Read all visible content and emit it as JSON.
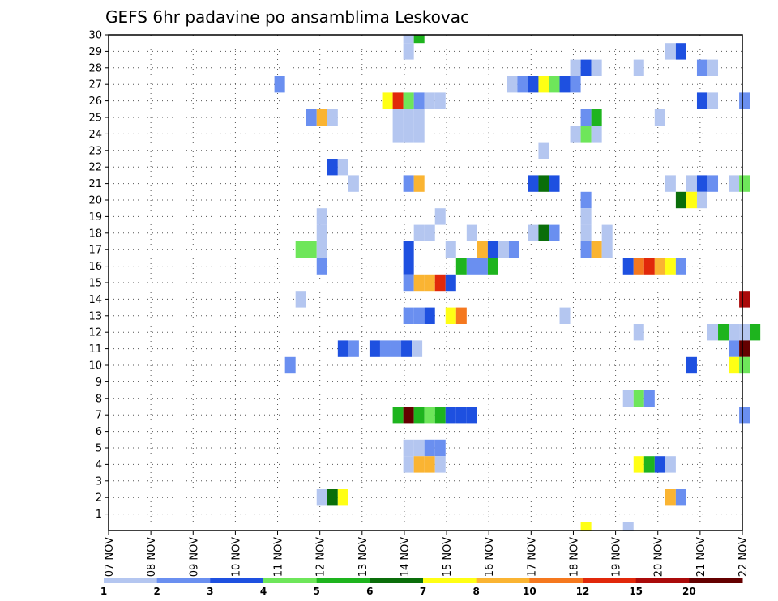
{
  "chart_data": {
    "type": "heatmap",
    "title": "GEFS 6hr padavine po ansamblima Leskovac",
    "xlabel": "",
    "ylabel": "",
    "x_range": [
      0,
      30
    ],
    "y_range": [
      0,
      30
    ],
    "x_ticks": [
      {
        "pos": 0,
        "label": "07 NOV"
      },
      {
        "pos": 2,
        "label": "08 NOV"
      },
      {
        "pos": 4,
        "label": "09 NOV"
      },
      {
        "pos": 6,
        "label": "10 NOV"
      },
      {
        "pos": 8,
        "label": "11 NOV"
      },
      {
        "pos": 10,
        "label": "12 NOV"
      },
      {
        "pos": 12,
        "label": "13 NOV"
      },
      {
        "pos": 14,
        "label": "14 NOV"
      },
      {
        "pos": 16,
        "label": "15 NOV"
      },
      {
        "pos": 18,
        "label": "16 NOV"
      },
      {
        "pos": 20,
        "label": "17 NOV"
      },
      {
        "pos": 22,
        "label": "18 NOV"
      },
      {
        "pos": 24,
        "label": "19 NOV"
      },
      {
        "pos": 26,
        "label": "20 NOV"
      },
      {
        "pos": 28,
        "label": "21 NOV"
      },
      {
        "pos": 30,
        "label": "22 NOV"
      }
    ],
    "y_ticks": [
      "1",
      "2",
      "3",
      "4",
      "5",
      "6",
      "7",
      "8",
      "9",
      "10",
      "11",
      "12",
      "13",
      "14",
      "15",
      "16",
      "17",
      "18",
      "19",
      "20",
      "21",
      "22",
      "23",
      "24",
      "25",
      "26",
      "27",
      "28",
      "29",
      "30"
    ],
    "grid": true,
    "legend": {
      "placement": "bottom",
      "colors": [
        "#b4c6f0",
        "#6a8ff0",
        "#1e50e0",
        "#6ee65a",
        "#1eb41e",
        "#0a6e0a",
        "#ffff14",
        "#fab432",
        "#f5781e",
        "#e1280a",
        "#aa0a0a",
        "#640000"
      ],
      "labels": [
        "1",
        "2",
        "3",
        "4",
        "5",
        "6",
        "7",
        "8",
        "10",
        "12",
        "15",
        "20"
      ]
    },
    "cells": [
      {
        "x": 14.2,
        "y": 30,
        "v": 1
      },
      {
        "x": 14.7,
        "y": 30,
        "v": 5
      },
      {
        "x": 14.2,
        "y": 29,
        "v": 1
      },
      {
        "x": 26.6,
        "y": 29,
        "v": 1
      },
      {
        "x": 27.1,
        "y": 29,
        "v": 3
      },
      {
        "x": 22.1,
        "y": 28,
        "v": 1
      },
      {
        "x": 22.6,
        "y": 28,
        "v": 3
      },
      {
        "x": 23.1,
        "y": 28,
        "v": 1
      },
      {
        "x": 25.1,
        "y": 28,
        "v": 1
      },
      {
        "x": 28.1,
        "y": 28,
        "v": 2
      },
      {
        "x": 28.6,
        "y": 28,
        "v": 1
      },
      {
        "x": 8.1,
        "y": 27,
        "v": 2
      },
      {
        "x": 19.1,
        "y": 27,
        "v": 1
      },
      {
        "x": 19.6,
        "y": 27,
        "v": 2
      },
      {
        "x": 20.1,
        "y": 27,
        "v": 3
      },
      {
        "x": 20.6,
        "y": 27,
        "v": 7
      },
      {
        "x": 21.1,
        "y": 27,
        "v": 4
      },
      {
        "x": 21.6,
        "y": 27,
        "v": 3
      },
      {
        "x": 22.1,
        "y": 27,
        "v": 2
      },
      {
        "x": 13.2,
        "y": 26,
        "v": 7
      },
      {
        "x": 13.7,
        "y": 26,
        "v": 12
      },
      {
        "x": 14.2,
        "y": 26,
        "v": 4
      },
      {
        "x": 14.7,
        "y": 26,
        "v": 2
      },
      {
        "x": 15.2,
        "y": 26,
        "v": 1
      },
      {
        "x": 15.7,
        "y": 26,
        "v": 1
      },
      {
        "x": 28.1,
        "y": 26,
        "v": 3
      },
      {
        "x": 28.6,
        "y": 26,
        "v": 1
      },
      {
        "x": 30.1,
        "y": 26,
        "v": 2
      },
      {
        "x": 9.6,
        "y": 25,
        "v": 2
      },
      {
        "x": 10.1,
        "y": 25,
        "v": 8
      },
      {
        "x": 10.6,
        "y": 25,
        "v": 1
      },
      {
        "x": 13.7,
        "y": 25,
        "v": 1
      },
      {
        "x": 14.2,
        "y": 25,
        "v": 1
      },
      {
        "x": 14.7,
        "y": 25,
        "v": 1
      },
      {
        "x": 22.6,
        "y": 25,
        "v": 2
      },
      {
        "x": 23.1,
        "y": 25,
        "v": 5
      },
      {
        "x": 26.1,
        "y": 25,
        "v": 1
      },
      {
        "x": 13.7,
        "y": 24,
        "v": 1
      },
      {
        "x": 14.2,
        "y": 24,
        "v": 1
      },
      {
        "x": 14.7,
        "y": 24,
        "v": 1
      },
      {
        "x": 22.1,
        "y": 24,
        "v": 1
      },
      {
        "x": 22.6,
        "y": 24,
        "v": 4
      },
      {
        "x": 23.1,
        "y": 24,
        "v": 1
      },
      {
        "x": 20.6,
        "y": 23,
        "v": 1
      },
      {
        "x": 10.6,
        "y": 22,
        "v": 3
      },
      {
        "x": 11.1,
        "y": 22,
        "v": 1
      },
      {
        "x": 11.6,
        "y": 21,
        "v": 1
      },
      {
        "x": 14.2,
        "y": 21,
        "v": 2
      },
      {
        "x": 14.7,
        "y": 21,
        "v": 8
      },
      {
        "x": 20.1,
        "y": 21,
        "v": 3
      },
      {
        "x": 20.6,
        "y": 21,
        "v": 6
      },
      {
        "x": 21.1,
        "y": 21,
        "v": 3
      },
      {
        "x": 26.6,
        "y": 21,
        "v": 1
      },
      {
        "x": 27.6,
        "y": 21,
        "v": 1
      },
      {
        "x": 28.1,
        "y": 21,
        "v": 3
      },
      {
        "x": 28.6,
        "y": 21,
        "v": 2
      },
      {
        "x": 29.6,
        "y": 21,
        "v": 1
      },
      {
        "x": 30.1,
        "y": 21,
        "v": 4
      },
      {
        "x": 22.6,
        "y": 20,
        "v": 2
      },
      {
        "x": 27.1,
        "y": 20,
        "v": 6
      },
      {
        "x": 27.6,
        "y": 20,
        "v": 7
      },
      {
        "x": 28.1,
        "y": 20,
        "v": 1
      },
      {
        "x": 15.7,
        "y": 19,
        "v": 1
      },
      {
        "x": 10.1,
        "y": 19,
        "v": 1
      },
      {
        "x": 22.6,
        "y": 19,
        "v": 1
      },
      {
        "x": 10.1,
        "y": 18,
        "v": 1
      },
      {
        "x": 14.7,
        "y": 18,
        "v": 1
      },
      {
        "x": 15.2,
        "y": 18,
        "v": 1
      },
      {
        "x": 17.2,
        "y": 18,
        "v": 1
      },
      {
        "x": 20.1,
        "y": 18,
        "v": 1
      },
      {
        "x": 20.6,
        "y": 18,
        "v": 6
      },
      {
        "x": 21.1,
        "y": 18,
        "v": 2
      },
      {
        "x": 22.6,
        "y": 18,
        "v": 1
      },
      {
        "x": 23.6,
        "y": 18,
        "v": 1
      },
      {
        "x": 9.1,
        "y": 17,
        "v": 4
      },
      {
        "x": 9.6,
        "y": 17,
        "v": 4
      },
      {
        "x": 10.1,
        "y": 17,
        "v": 1
      },
      {
        "x": 14.2,
        "y": 17,
        "v": 3
      },
      {
        "x": 16.2,
        "y": 17,
        "v": 1
      },
      {
        "x": 17.7,
        "y": 17,
        "v": 8
      },
      {
        "x": 18.2,
        "y": 17,
        "v": 3
      },
      {
        "x": 18.7,
        "y": 17,
        "v": 1
      },
      {
        "x": 19.2,
        "y": 17,
        "v": 2
      },
      {
        "x": 22.6,
        "y": 17,
        "v": 2
      },
      {
        "x": 23.1,
        "y": 17,
        "v": 8
      },
      {
        "x": 23.6,
        "y": 17,
        "v": 1
      },
      {
        "x": 10.1,
        "y": 16,
        "v": 2
      },
      {
        "x": 14.2,
        "y": 16,
        "v": 3
      },
      {
        "x": 16.7,
        "y": 16,
        "v": 5
      },
      {
        "x": 17.2,
        "y": 16,
        "v": 2
      },
      {
        "x": 17.7,
        "y": 16,
        "v": 2
      },
      {
        "x": 18.2,
        "y": 16,
        "v": 5
      },
      {
        "x": 24.6,
        "y": 16,
        "v": 3
      },
      {
        "x": 25.1,
        "y": 16,
        "v": 10
      },
      {
        "x": 25.6,
        "y": 16,
        "v": 12
      },
      {
        "x": 26.1,
        "y": 16,
        "v": 8
      },
      {
        "x": 26.6,
        "y": 16,
        "v": 7
      },
      {
        "x": 27.1,
        "y": 16,
        "v": 2
      },
      {
        "x": 14.2,
        "y": 15,
        "v": 2
      },
      {
        "x": 14.7,
        "y": 15,
        "v": 8
      },
      {
        "x": 15.2,
        "y": 15,
        "v": 8
      },
      {
        "x": 15.7,
        "y": 15,
        "v": 12
      },
      {
        "x": 16.2,
        "y": 15,
        "v": 3
      },
      {
        "x": 9.1,
        "y": 14,
        "v": 1
      },
      {
        "x": 30.1,
        "y": 14,
        "v": 15
      },
      {
        "x": 14.2,
        "y": 13,
        "v": 2
      },
      {
        "x": 14.7,
        "y": 13,
        "v": 2
      },
      {
        "x": 15.2,
        "y": 13,
        "v": 3
      },
      {
        "x": 16.2,
        "y": 13,
        "v": 7
      },
      {
        "x": 16.7,
        "y": 13,
        "v": 10
      },
      {
        "x": 21.6,
        "y": 13,
        "v": 1
      },
      {
        "x": 25.1,
        "y": 12,
        "v": 1
      },
      {
        "x": 28.6,
        "y": 12,
        "v": 1
      },
      {
        "x": 29.1,
        "y": 12,
        "v": 5
      },
      {
        "x": 29.6,
        "y": 12,
        "v": 1
      },
      {
        "x": 30.1,
        "y": 12,
        "v": 1
      },
      {
        "x": 30.6,
        "y": 12,
        "v": 5
      },
      {
        "x": 11.1,
        "y": 11,
        "v": 3
      },
      {
        "x": 11.6,
        "y": 11,
        "v": 2
      },
      {
        "x": 12.6,
        "y": 11,
        "v": 3
      },
      {
        "x": 13.1,
        "y": 11,
        "v": 2
      },
      {
        "x": 13.6,
        "y": 11,
        "v": 2
      },
      {
        "x": 14.1,
        "y": 11,
        "v": 3
      },
      {
        "x": 14.6,
        "y": 11,
        "v": 1
      },
      {
        "x": 29.6,
        "y": 11,
        "v": 2
      },
      {
        "x": 30.1,
        "y": 11,
        "v": 20
      },
      {
        "x": 8.6,
        "y": 10,
        "v": 2
      },
      {
        "x": 27.6,
        "y": 10,
        "v": 3
      },
      {
        "x": 29.6,
        "y": 10,
        "v": 7
      },
      {
        "x": 30.1,
        "y": 10,
        "v": 4
      },
      {
        "x": 24.6,
        "y": 8,
        "v": 1
      },
      {
        "x": 25.1,
        "y": 8,
        "v": 4
      },
      {
        "x": 25.6,
        "y": 8,
        "v": 2
      },
      {
        "x": 13.7,
        "y": 7,
        "v": 5
      },
      {
        "x": 14.2,
        "y": 7,
        "v": 20
      },
      {
        "x": 14.7,
        "y": 7,
        "v": 5
      },
      {
        "x": 15.2,
        "y": 7,
        "v": 4
      },
      {
        "x": 15.7,
        "y": 7,
        "v": 5
      },
      {
        "x": 16.2,
        "y": 7,
        "v": 3
      },
      {
        "x": 16.7,
        "y": 7,
        "v": 3
      },
      {
        "x": 17.2,
        "y": 7,
        "v": 3
      },
      {
        "x": 30.1,
        "y": 7,
        "v": 2
      },
      {
        "x": 14.2,
        "y": 5,
        "v": 1
      },
      {
        "x": 14.7,
        "y": 5,
        "v": 1
      },
      {
        "x": 15.2,
        "y": 5,
        "v": 2
      },
      {
        "x": 15.7,
        "y": 5,
        "v": 2
      },
      {
        "x": 14.2,
        "y": 4,
        "v": 1
      },
      {
        "x": 14.7,
        "y": 4,
        "v": 8
      },
      {
        "x": 15.2,
        "y": 4,
        "v": 8
      },
      {
        "x": 15.7,
        "y": 4,
        "v": 1
      },
      {
        "x": 25.1,
        "y": 4,
        "v": 7
      },
      {
        "x": 25.6,
        "y": 4,
        "v": 5
      },
      {
        "x": 26.1,
        "y": 4,
        "v": 3
      },
      {
        "x": 26.6,
        "y": 4,
        "v": 1
      },
      {
        "x": 10.1,
        "y": 2,
        "v": 1
      },
      {
        "x": 10.6,
        "y": 2,
        "v": 6
      },
      {
        "x": 11.1,
        "y": 2,
        "v": 7
      },
      {
        "x": 26.6,
        "y": 2,
        "v": 8
      },
      {
        "x": 27.1,
        "y": 2,
        "v": 2
      },
      {
        "x": 22.6,
        "y": 0,
        "v": 7
      },
      {
        "x": 24.6,
        "y": 0,
        "v": 1
      }
    ]
  }
}
